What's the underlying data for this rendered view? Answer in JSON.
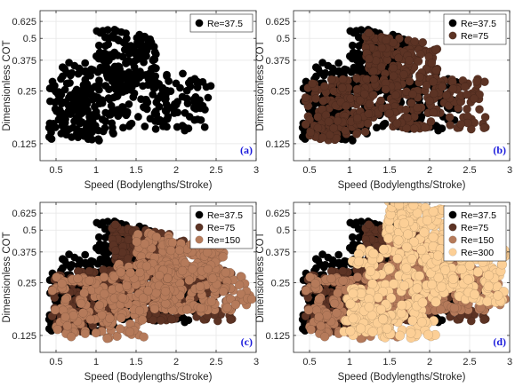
{
  "chart_data": [
    {
      "type": "scatter",
      "panel_label": "(a)",
      "xlabel": "Speed (Bodylengths/Stroke)",
      "ylabel": "Dimensionless COT",
      "xlim": [
        0.3,
        3.0
      ],
      "ylim": [
        0.1,
        0.72
      ],
      "xticks": [
        "0.5",
        "1",
        "1.5",
        "2",
        "2.5",
        "3"
      ],
      "yticks": [
        "0.125",
        "0.25",
        "0.375",
        "0.5",
        "0.625"
      ],
      "grid": true,
      "legend_position": "top-right",
      "series": [
        {
          "name": "Re=37.5",
          "color": "#000000",
          "clusters": [
            {
              "x0": 0.4,
              "x1": 1.05,
              "y0": 0.13,
              "y1": 0.34,
              "n": 110,
              "tilt": -0.05,
              "seed": 11
            },
            {
              "x0": 0.55,
              "x1": 1.3,
              "y0": 0.14,
              "y1": 0.36,
              "n": 90,
              "tilt": -0.04,
              "seed": 12
            },
            {
              "x0": 1.0,
              "x1": 1.75,
              "y0": 0.28,
              "y1": 0.55,
              "n": 150,
              "tilt": -0.18,
              "seed": 13
            },
            {
              "x0": 1.15,
              "x1": 2.45,
              "y0": 0.15,
              "y1": 0.32,
              "n": 130,
              "tilt": -0.06,
              "seed": 14
            }
          ]
        }
      ]
    },
    {
      "type": "scatter",
      "panel_label": "(b)",
      "xlabel": "Speed (Bodylengths/Stroke)",
      "ylabel": "Dimensionless COT",
      "xlim": [
        0.3,
        3.0
      ],
      "ylim": [
        0.1,
        0.72
      ],
      "xticks": [
        "0.5",
        "1",
        "1.5",
        "2",
        "2.5",
        "3"
      ],
      "yticks": [
        "0.125",
        "0.25",
        "0.375",
        "0.5",
        "0.625"
      ],
      "grid": true,
      "legend_position": "top-right",
      "series": [
        {
          "name": "Re=37.5",
          "color": "#000000",
          "clusters": [
            {
              "x0": 0.4,
              "x1": 1.05,
              "y0": 0.13,
              "y1": 0.34,
              "n": 110,
              "tilt": -0.05,
              "seed": 11
            },
            {
              "x0": 0.55,
              "x1": 1.3,
              "y0": 0.14,
              "y1": 0.36,
              "n": 90,
              "tilt": -0.04,
              "seed": 12
            },
            {
              "x0": 1.0,
              "x1": 1.75,
              "y0": 0.28,
              "y1": 0.55,
              "n": 150,
              "tilt": -0.18,
              "seed": 13
            },
            {
              "x0": 1.15,
              "x1": 2.45,
              "y0": 0.15,
              "y1": 0.32,
              "n": 130,
              "tilt": -0.06,
              "seed": 14
            }
          ]
        },
        {
          "name": "Re=75",
          "color": "#5c3324",
          "clusters": [
            {
              "x0": 0.45,
              "x1": 1.3,
              "y0": 0.13,
              "y1": 0.3,
              "n": 110,
              "tilt": -0.04,
              "seed": 21
            },
            {
              "x0": 1.2,
              "x1": 2.1,
              "y0": 0.3,
              "y1": 0.5,
              "n": 150,
              "tilt": -0.18,
              "seed": 22
            },
            {
              "x0": 1.5,
              "x1": 2.7,
              "y0": 0.15,
              "y1": 0.3,
              "n": 150,
              "tilt": -0.04,
              "seed": 23
            },
            {
              "x0": 0.85,
              "x1": 1.5,
              "y0": 0.16,
              "y1": 0.3,
              "n": 70,
              "tilt": 0.0,
              "seed": 24
            }
          ]
        }
      ]
    },
    {
      "type": "scatter",
      "panel_label": "(c)",
      "xlabel": "Speed (Bodylengths/Stroke)",
      "ylabel": "Dimensionless COT",
      "xlim": [
        0.3,
        3.0
      ],
      "ylim": [
        0.1,
        0.72
      ],
      "xticks": [
        "0.5",
        "1",
        "1.5",
        "2",
        "2.5",
        "3"
      ],
      "yticks": [
        "0.125",
        "0.25",
        "0.375",
        "0.5",
        "0.625"
      ],
      "grid": true,
      "legend_position": "top-right",
      "series": [
        {
          "name": "Re=37.5",
          "color": "#000000",
          "clusters": [
            {
              "x0": 0.4,
              "x1": 1.05,
              "y0": 0.13,
              "y1": 0.34,
              "n": 110,
              "tilt": -0.05,
              "seed": 11
            },
            {
              "x0": 0.55,
              "x1": 1.3,
              "y0": 0.14,
              "y1": 0.36,
              "n": 90,
              "tilt": -0.04,
              "seed": 12
            },
            {
              "x0": 1.0,
              "x1": 1.75,
              "y0": 0.28,
              "y1": 0.55,
              "n": 150,
              "tilt": -0.18,
              "seed": 13
            },
            {
              "x0": 1.15,
              "x1": 2.45,
              "y0": 0.15,
              "y1": 0.32,
              "n": 130,
              "tilt": -0.06,
              "seed": 14
            }
          ]
        },
        {
          "name": "Re=75",
          "color": "#5c3324",
          "clusters": [
            {
              "x0": 0.45,
              "x1": 1.3,
              "y0": 0.13,
              "y1": 0.3,
              "n": 110,
              "tilt": -0.04,
              "seed": 21
            },
            {
              "x0": 1.2,
              "x1": 2.1,
              "y0": 0.3,
              "y1": 0.5,
              "n": 150,
              "tilt": -0.18,
              "seed": 22
            },
            {
              "x0": 1.5,
              "x1": 2.7,
              "y0": 0.15,
              "y1": 0.3,
              "n": 150,
              "tilt": -0.04,
              "seed": 23
            },
            {
              "x0": 0.85,
              "x1": 1.5,
              "y0": 0.16,
              "y1": 0.3,
              "n": 70,
              "tilt": 0.0,
              "seed": 24
            }
          ]
        },
        {
          "name": "Re=150",
          "color": "#b57a5a",
          "clusters": [
            {
              "x0": 0.45,
              "x1": 1.6,
              "y0": 0.12,
              "y1": 0.27,
              "n": 150,
              "tilt": -0.02,
              "seed": 31
            },
            {
              "x0": 1.5,
              "x1": 2.6,
              "y0": 0.28,
              "y1": 0.46,
              "n": 160,
              "tilt": -0.15,
              "seed": 32
            },
            {
              "x0": 1.7,
              "x1": 2.95,
              "y0": 0.17,
              "y1": 0.3,
              "n": 160,
              "tilt": -0.03,
              "seed": 33
            },
            {
              "x0": 1.2,
              "x1": 1.9,
              "y0": 0.2,
              "y1": 0.32,
              "n": 60,
              "tilt": 0.0,
              "seed": 34
            }
          ]
        }
      ]
    },
    {
      "type": "scatter",
      "panel_label": "(d)",
      "xlabel": "Speed (Bodylengths/Stroke)",
      "ylabel": "Dimensionless COT",
      "xlim": [
        0.3,
        3.0
      ],
      "ylim": [
        0.1,
        0.72
      ],
      "xticks": [
        "0.5",
        "1",
        "1.5",
        "2",
        "2.5",
        "3"
      ],
      "yticks": [
        "0.125",
        "0.25",
        "0.375",
        "0.5",
        "0.625"
      ],
      "grid": true,
      "legend_position": "top-right",
      "series": [
        {
          "name": "Re=37.5",
          "color": "#000000",
          "clusters": [
            {
              "x0": 0.4,
              "x1": 1.05,
              "y0": 0.13,
              "y1": 0.34,
              "n": 110,
              "tilt": -0.05,
              "seed": 11
            },
            {
              "x0": 0.55,
              "x1": 1.3,
              "y0": 0.14,
              "y1": 0.36,
              "n": 90,
              "tilt": -0.04,
              "seed": 12
            },
            {
              "x0": 1.0,
              "x1": 1.75,
              "y0": 0.28,
              "y1": 0.55,
              "n": 150,
              "tilt": -0.18,
              "seed": 13
            },
            {
              "x0": 1.15,
              "x1": 2.45,
              "y0": 0.15,
              "y1": 0.32,
              "n": 130,
              "tilt": -0.06,
              "seed": 14
            }
          ]
        },
        {
          "name": "Re=75",
          "color": "#5c3324",
          "clusters": [
            {
              "x0": 0.45,
              "x1": 1.3,
              "y0": 0.13,
              "y1": 0.3,
              "n": 110,
              "tilt": -0.04,
              "seed": 21
            },
            {
              "x0": 1.2,
              "x1": 2.1,
              "y0": 0.3,
              "y1": 0.5,
              "n": 150,
              "tilt": -0.18,
              "seed": 22
            },
            {
              "x0": 1.5,
              "x1": 2.7,
              "y0": 0.15,
              "y1": 0.3,
              "n": 150,
              "tilt": -0.04,
              "seed": 23
            },
            {
              "x0": 0.85,
              "x1": 1.5,
              "y0": 0.16,
              "y1": 0.3,
              "n": 70,
              "tilt": 0.0,
              "seed": 24
            }
          ]
        },
        {
          "name": "Re=150",
          "color": "#b57a5a",
          "clusters": [
            {
              "x0": 0.45,
              "x1": 1.6,
              "y0": 0.12,
              "y1": 0.27,
              "n": 150,
              "tilt": -0.02,
              "seed": 31
            },
            {
              "x0": 1.5,
              "x1": 2.6,
              "y0": 0.28,
              "y1": 0.46,
              "n": 160,
              "tilt": -0.15,
              "seed": 32
            },
            {
              "x0": 1.7,
              "x1": 2.95,
              "y0": 0.17,
              "y1": 0.3,
              "n": 160,
              "tilt": -0.03,
              "seed": 33
            },
            {
              "x0": 1.2,
              "x1": 1.9,
              "y0": 0.2,
              "y1": 0.32,
              "n": 60,
              "tilt": 0.0,
              "seed": 34
            }
          ]
        },
        {
          "name": "Re=300",
          "color": "#fccf96",
          "clusters": [
            {
              "x0": 1.45,
              "x1": 2.2,
              "y0": 0.4,
              "y1": 0.7,
              "n": 130,
              "tilt": -0.12,
              "seed": 41
            },
            {
              "x0": 1.0,
              "x1": 2.1,
              "y0": 0.12,
              "y1": 0.4,
              "n": 180,
              "tilt": 0.0,
              "seed": 42
            },
            {
              "x0": 2.0,
              "x1": 2.95,
              "y0": 0.2,
              "y1": 0.45,
              "n": 150,
              "tilt": -0.12,
              "seed": 43
            },
            {
              "x0": 0.9,
              "x1": 1.5,
              "y0": 0.13,
              "y1": 0.22,
              "n": 50,
              "tilt": 0.0,
              "seed": 44
            }
          ]
        }
      ]
    }
  ]
}
